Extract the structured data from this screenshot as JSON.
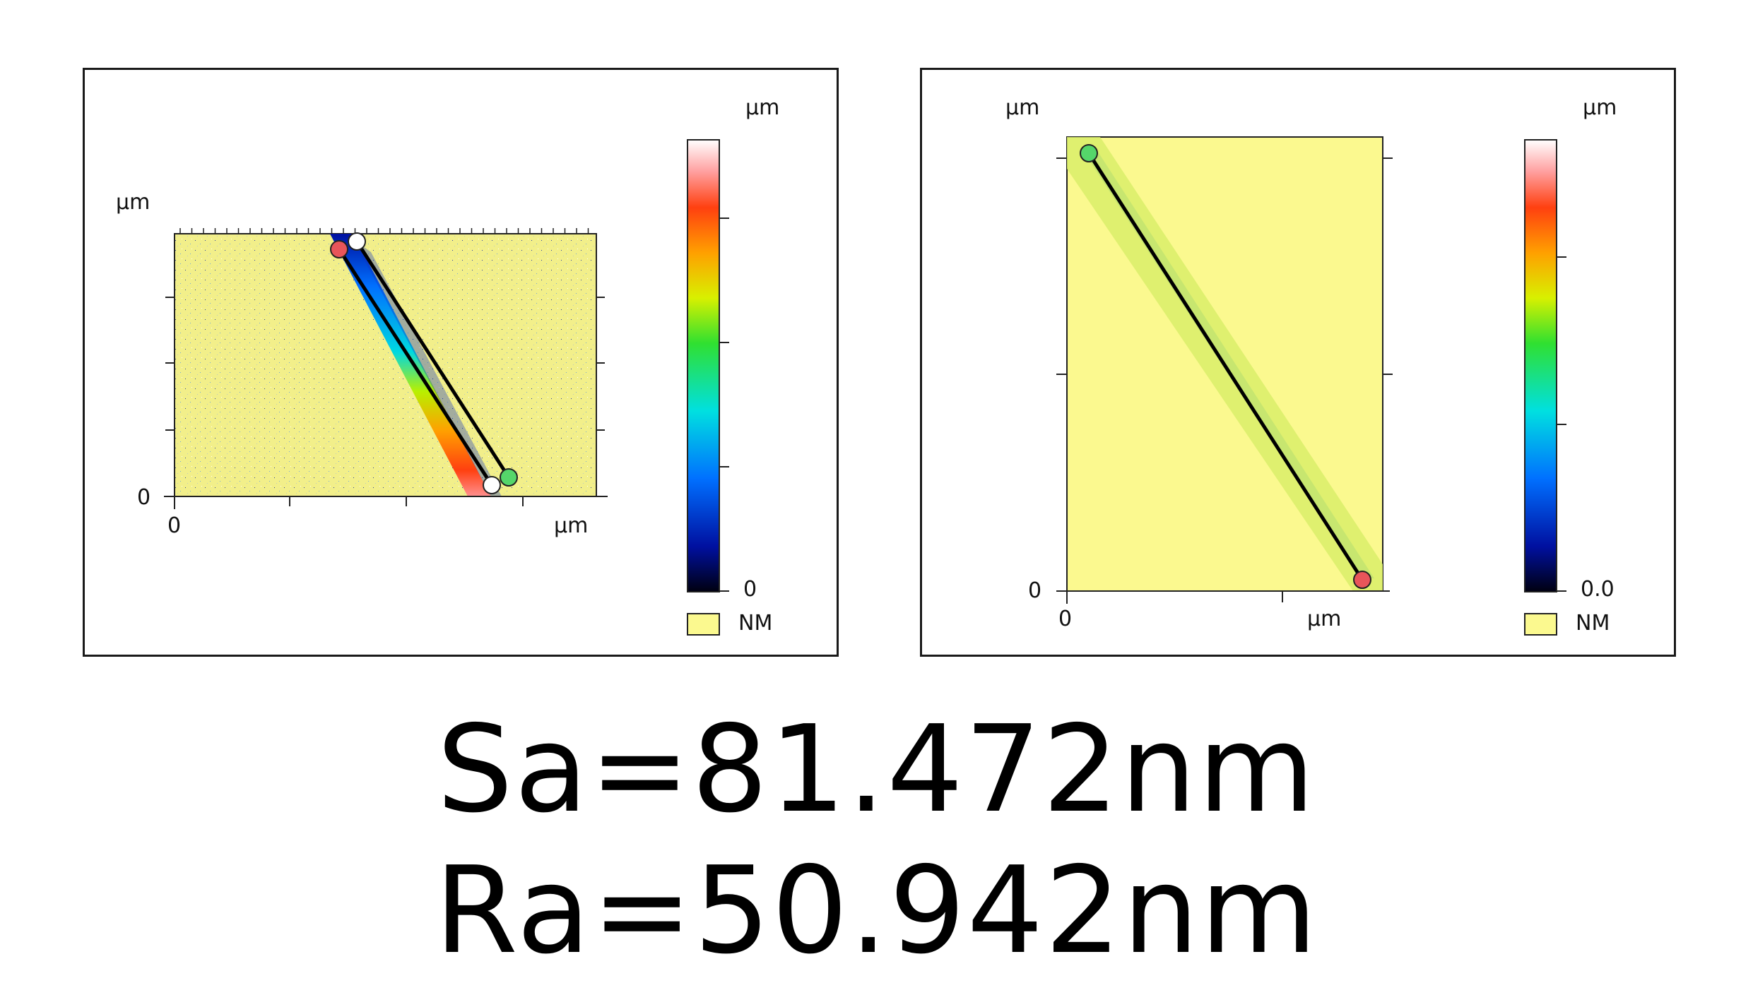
{
  "left_plot": {
    "y_unit": "µm",
    "y_zero": "0",
    "x_zero": "0",
    "x_unit": "µm",
    "colorbar_unit": "µm",
    "colorbar_min": "0",
    "legend_label": "NM"
  },
  "right_plot": {
    "y_unit": "µm",
    "y_zero": "0",
    "x_zero": "0",
    "x_unit": "µm",
    "colorbar_unit": "µm",
    "colorbar_min": "0.0",
    "legend_label": "NM"
  },
  "metrics": {
    "sa": "Sa=81.472nm",
    "ra": "Ra=50.942nm"
  },
  "colors": {
    "background_map": "#f5f38c",
    "profile_line": "#000000",
    "marker_red": "#e8555a",
    "marker_green": "#55d66a",
    "marker_white": "#ffffff"
  }
}
